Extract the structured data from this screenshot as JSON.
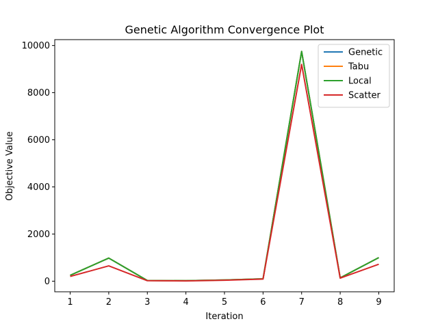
{
  "chart_data": {
    "type": "line",
    "title": "Genetic Algorithm Convergence Plot",
    "xlabel": "Iteration",
    "ylabel": "Objective Value",
    "x": [
      1,
      2,
      3,
      4,
      5,
      6,
      7,
      8,
      9
    ],
    "xticks": [
      "1",
      "2",
      "3",
      "4",
      "5",
      "6",
      "7",
      "8",
      "9"
    ],
    "yticks": [
      0,
      2000,
      4000,
      6000,
      8000,
      10000
    ],
    "ytick_labels": [
      "0",
      "2000",
      "4000",
      "6000",
      "8000",
      "10000"
    ],
    "xlim": [
      0.6,
      9.4
    ],
    "ylim": [
      -450,
      10250
    ],
    "grid": false,
    "legend_position": "top-right",
    "series": [
      {
        "name": "Genetic",
        "color": "#1f77b4",
        "values": [
          250,
          980,
          30,
          20,
          50,
          100,
          9750,
          140,
          1000
        ]
      },
      {
        "name": "Tabu",
        "color": "#ff7f0e",
        "values": [
          250,
          980,
          30,
          20,
          50,
          100,
          9750,
          140,
          1000
        ]
      },
      {
        "name": "Local",
        "color": "#2ca02c",
        "values": [
          250,
          980,
          30,
          20,
          50,
          100,
          9750,
          140,
          1000
        ]
      },
      {
        "name": "Scatter",
        "color": "#d62728",
        "values": [
          200,
          650,
          20,
          10,
          40,
          90,
          9200,
          130,
          720
        ]
      }
    ]
  }
}
